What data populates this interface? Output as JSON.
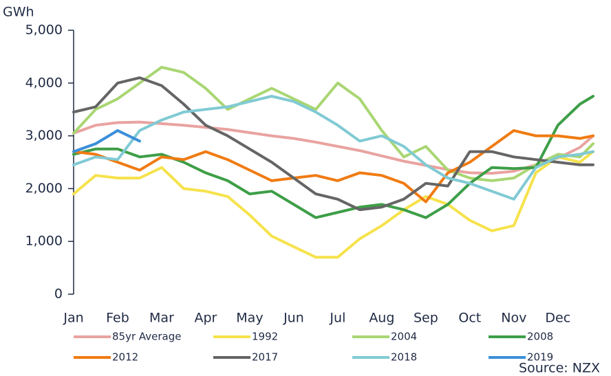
{
  "chart_data": {
    "type": "line",
    "ylabel": "GWh",
    "source": "Source: NZX",
    "xlim": [
      0,
      11.8
    ],
    "xticks": [
      {
        "value": 0,
        "label": "Jan"
      },
      {
        "value": 1,
        "label": "Feb"
      },
      {
        "value": 2,
        "label": "Mar"
      },
      {
        "value": 3,
        "label": "Apr"
      },
      {
        "value": 4,
        "label": "May"
      },
      {
        "value": 5,
        "label": "Jun"
      },
      {
        "value": 6,
        "label": "Jul"
      },
      {
        "value": 7,
        "label": "Aug"
      },
      {
        "value": 8,
        "label": "Sep"
      },
      {
        "value": 9,
        "label": "Oct"
      },
      {
        "value": 10,
        "label": "Nov"
      },
      {
        "value": 11,
        "label": "Dec"
      }
    ],
    "ylim": [
      0,
      5000
    ],
    "yticks": [
      0,
      {
        "value": 1000,
        "label": "1,000"
      },
      {
        "value": 2000,
        "label": "2,000"
      },
      {
        "value": 3000,
        "label": "3,000"
      },
      {
        "value": 4000,
        "label": "4,000"
      },
      {
        "value": 5000,
        "label": "5,000"
      }
    ],
    "x": [
      0,
      0.5,
      1,
      1.5,
      2,
      2.5,
      3,
      3.5,
      4,
      4.5,
      5,
      5.5,
      6,
      6.5,
      7,
      7.5,
      8,
      8.5,
      9,
      9.5,
      10,
      10.5,
      11,
      11.5,
      11.8
    ],
    "series": [
      {
        "name": "85yr Average",
        "color": "#e9a3a0",
        "values": [
          3050,
          3200,
          3250,
          3260,
          3230,
          3200,
          3160,
          3120,
          3060,
          3000,
          2950,
          2880,
          2800,
          2720,
          2620,
          2520,
          2440,
          2360,
          2300,
          2290,
          2330,
          2450,
          2580,
          2780,
          3000
        ]
      },
      {
        "name": "1992",
        "color": "#f6e24c",
        "values": [
          1900,
          2250,
          2200,
          2200,
          2400,
          2000,
          1950,
          1850,
          1500,
          1100,
          900,
          700,
          700,
          1050,
          1300,
          1600,
          1850,
          1700,
          1400,
          1200,
          1300,
          2300,
          2600,
          2500,
          2700
        ]
      },
      {
        "name": "2004",
        "color": "#a9d673",
        "values": [
          3050,
          3500,
          3700,
          4000,
          4300,
          4200,
          3900,
          3500,
          3700,
          3900,
          3700,
          3500,
          4000,
          3700,
          3100,
          2600,
          2800,
          2350,
          2200,
          2150,
          2200,
          2450,
          2650,
          2600,
          2850
        ]
      },
      {
        "name": "2008",
        "color": "#3d9e47",
        "values": [
          2650,
          2750,
          2750,
          2600,
          2650,
          2500,
          2300,
          2150,
          1900,
          1950,
          1700,
          1450,
          1550,
          1650,
          1700,
          1600,
          1450,
          1700,
          2100,
          2400,
          2380,
          2400,
          3200,
          3600,
          3750
        ]
      },
      {
        "name": "2012",
        "color": "#f07b12",
        "values": [
          2700,
          2650,
          2500,
          2350,
          2600,
          2550,
          2700,
          2550,
          2350,
          2150,
          2200,
          2250,
          2150,
          2300,
          2250,
          2100,
          1750,
          2300,
          2500,
          2800,
          3100,
          3000,
          3000,
          2950,
          3000
        ]
      },
      {
        "name": "2017",
        "color": "#656565",
        "values": [
          3450,
          3550,
          4000,
          4100,
          3950,
          3600,
          3200,
          3000,
          2750,
          2500,
          2200,
          1900,
          1800,
          1600,
          1650,
          1800,
          2100,
          2050,
          2700,
          2700,
          2600,
          2550,
          2500,
          2450,
          2450
        ]
      },
      {
        "name": "2018",
        "color": "#80cad4",
        "values": [
          2450,
          2600,
          2550,
          3100,
          3300,
          3450,
          3500,
          3550,
          3650,
          3750,
          3650,
          3450,
          3200,
          2900,
          3000,
          2800,
          2450,
          2200,
          2100,
          1950,
          1800,
          2400,
          2600,
          2650,
          2700
        ]
      },
      {
        "name": "2019",
        "color": "#3b8fd9",
        "values": [
          2700,
          2850,
          3100,
          2900,
          null,
          null,
          null,
          null,
          null,
          null,
          null,
          null,
          null,
          null,
          null,
          null,
          null,
          null,
          null,
          null,
          null,
          null,
          null,
          null,
          null
        ]
      }
    ]
  }
}
